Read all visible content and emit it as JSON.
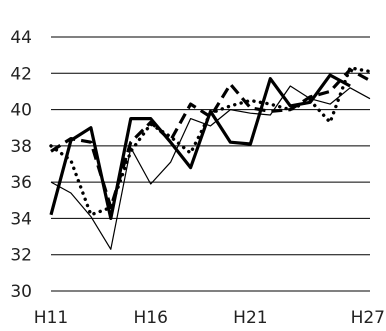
{
  "chart_data": {
    "type": "line",
    "x": [
      "H11",
      "H12",
      "H13",
      "H14",
      "H15",
      "H16",
      "H17",
      "H18",
      "H19",
      "H20",
      "H21",
      "H22",
      "H23",
      "H24",
      "H25",
      "H26",
      "H27"
    ],
    "x_tick_labels": [
      "H11",
      "H16",
      "H21",
      "H27"
    ],
    "y_ticks": [
      30,
      32,
      34,
      36,
      38,
      40,
      42,
      44
    ],
    "ylim": [
      30,
      44
    ],
    "grid": "horizontal",
    "title": "",
    "xlabel": "",
    "ylabel": "",
    "series": [
      {
        "style": "solid-thick",
        "color": "#000000",
        "values": [
          34.2,
          38.3,
          39.0,
          34.0,
          39.5,
          39.5,
          38.2,
          36.8,
          39.9,
          38.2,
          38.1,
          41.7,
          40.2,
          40.4,
          41.9,
          41.3,
          null
        ]
      },
      {
        "style": "solid-thin",
        "color": "#000000",
        "values": [
          36.0,
          35.4,
          34.1,
          32.3,
          37.9,
          35.9,
          37.1,
          39.5,
          39.1,
          40.0,
          39.8,
          39.7,
          41.3,
          40.6,
          40.3,
          41.2,
          40.6
        ]
      },
      {
        "style": "dashed",
        "color": "#000000",
        "values": [
          37.7,
          38.4,
          38.2,
          34.6,
          38.2,
          39.3,
          38.3,
          40.3,
          39.6,
          41.4,
          40.1,
          39.9,
          40.0,
          40.7,
          41.0,
          42.2,
          41.6
        ]
      },
      {
        "style": "dotted",
        "color": "#000000",
        "values": [
          38.0,
          37.2,
          34.2,
          34.6,
          37.7,
          39.2,
          38.5,
          37.6,
          39.8,
          40.2,
          40.5,
          40.3,
          40.0,
          40.5,
          39.3,
          42.3,
          42.1
        ]
      }
    ]
  }
}
